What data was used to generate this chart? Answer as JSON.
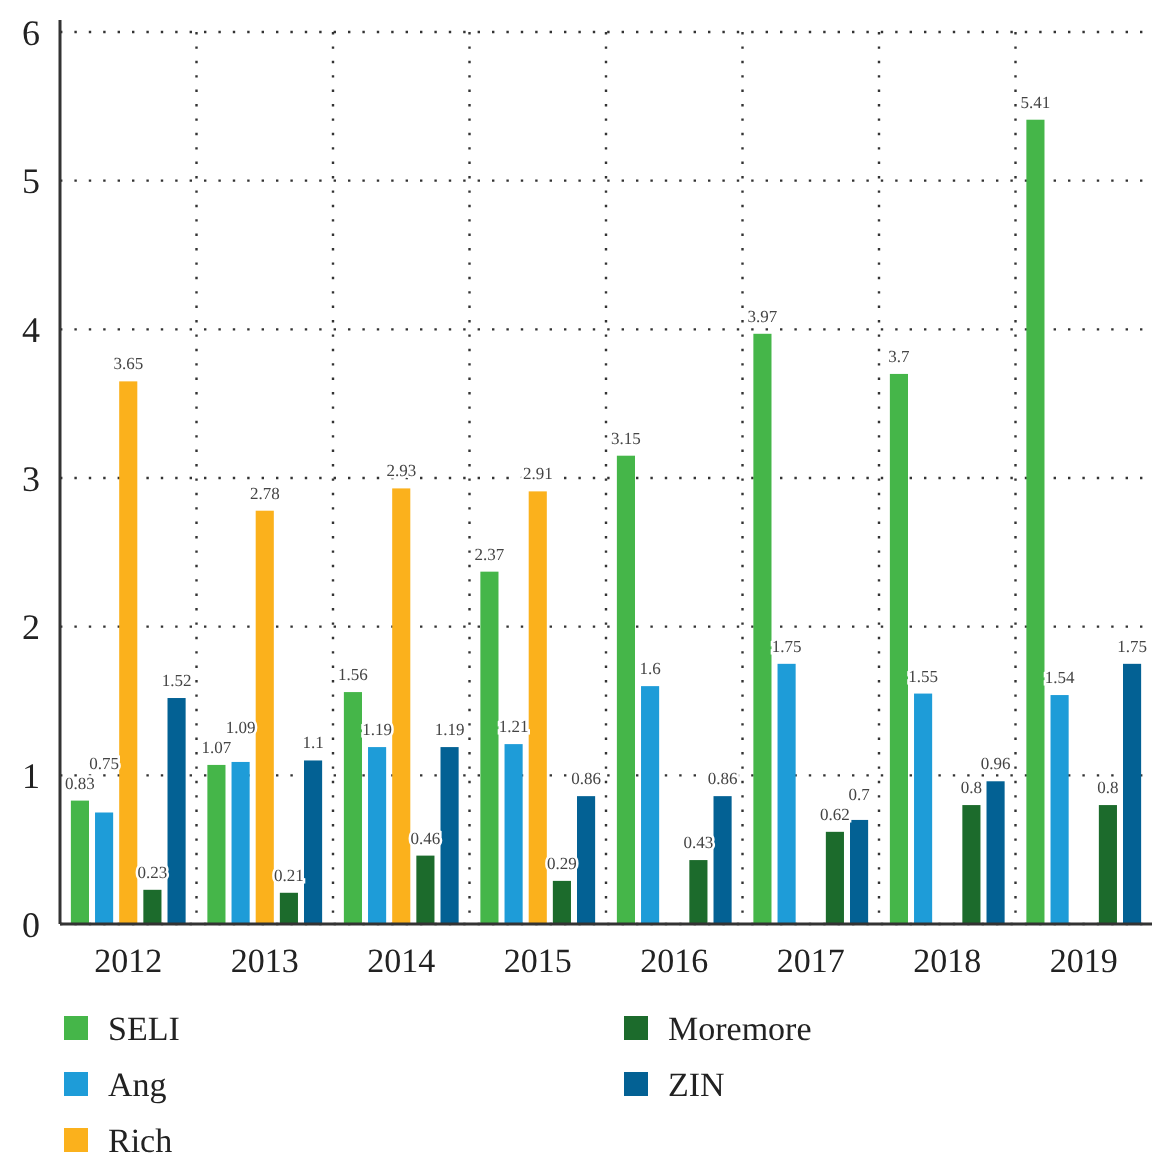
{
  "chart_data": {
    "type": "bar",
    "categories": [
      "2012",
      "2013",
      "2014",
      "2015",
      "2016",
      "2017",
      "2018",
      "2019"
    ],
    "series": [
      {
        "name": "SELI",
        "color": "#45b649",
        "values": [
          0.83,
          1.07,
          1.56,
          2.37,
          3.15,
          3.97,
          3.7,
          5.41
        ]
      },
      {
        "name": "Ang",
        "color": "#1e9cd8",
        "values": [
          0.75,
          1.09,
          1.19,
          1.21,
          1.6,
          1.75,
          1.55,
          1.54
        ]
      },
      {
        "name": "Rich",
        "color": "#fbb11c",
        "values": [
          3.65,
          2.78,
          2.93,
          2.91,
          null,
          null,
          null,
          null
        ]
      },
      {
        "name": "Moremore",
        "color": "#1c6b2c",
        "values": [
          0.23,
          0.21,
          0.46,
          0.29,
          0.43,
          0.62,
          0.8,
          0.8
        ]
      },
      {
        "name": "ZIN",
        "color": "#036194",
        "values": [
          1.52,
          1.1,
          1.19,
          0.86,
          0.86,
          0.7,
          0.96,
          1.75
        ]
      }
    ],
    "ylim": [
      0,
      6
    ],
    "yticks": [
      0,
      1,
      2,
      3,
      4,
      5,
      6
    ],
    "grid": true,
    "data_labels": true,
    "legend": "bottom"
  }
}
